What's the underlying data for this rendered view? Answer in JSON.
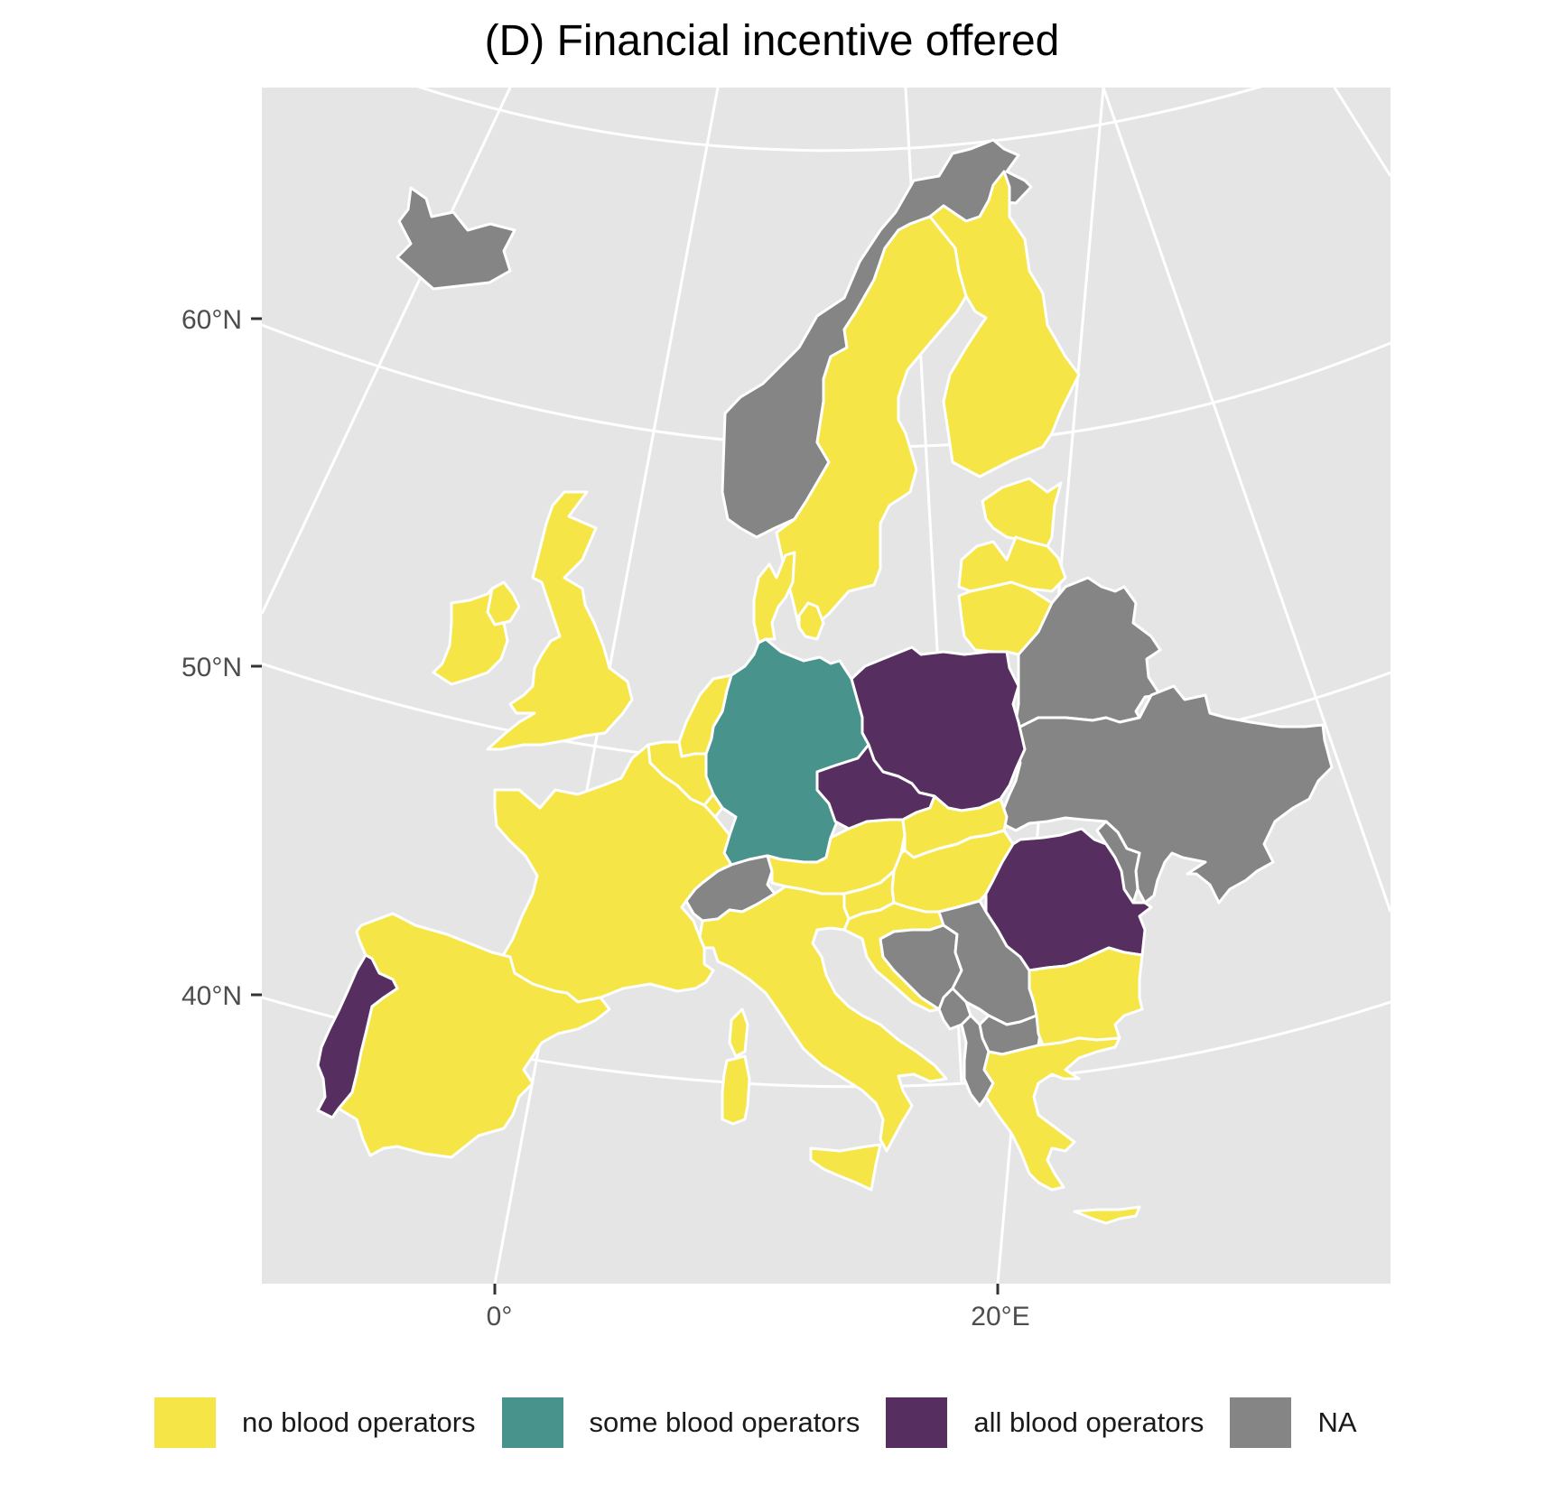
{
  "title": "(D) Financial incentive offered",
  "axes": {
    "y_ticks": [
      "60°N",
      "50°N",
      "40°N"
    ],
    "x_ticks": [
      "0°",
      "20°E"
    ]
  },
  "legend": {
    "items": [
      {
        "label": "no blood operators",
        "color": "#f6e547"
      },
      {
        "label": "some blood operators",
        "color": "#48948d"
      },
      {
        "label": "all blood operators",
        "color": "#572e60"
      },
      {
        "label": "NA",
        "color": "#858585"
      }
    ]
  },
  "map": {
    "panel_background": "#e5e5e5",
    "graticule_color": "#ffffff",
    "regions": [
      {
        "name": "Iceland",
        "category": "NA"
      },
      {
        "name": "Norway",
        "category": "NA"
      },
      {
        "name": "Sweden",
        "category": "no blood operators"
      },
      {
        "name": "Finland",
        "category": "no blood operators"
      },
      {
        "name": "Estonia",
        "category": "no blood operators"
      },
      {
        "name": "Latvia",
        "category": "no blood operators"
      },
      {
        "name": "Lithuania",
        "category": "no blood operators"
      },
      {
        "name": "Belarus",
        "category": "NA"
      },
      {
        "name": "Ukraine",
        "category": "NA"
      },
      {
        "name": "Moldova",
        "category": "NA"
      },
      {
        "name": "Poland",
        "category": "all blood operators"
      },
      {
        "name": "Germany",
        "category": "some blood operators"
      },
      {
        "name": "Czechia",
        "category": "all blood operators"
      },
      {
        "name": "Slovakia",
        "category": "no blood operators"
      },
      {
        "name": "Hungary",
        "category": "no blood operators"
      },
      {
        "name": "Austria",
        "category": "no blood operators"
      },
      {
        "name": "Slovenia",
        "category": "no blood operators"
      },
      {
        "name": "Croatia",
        "category": "no blood operators"
      },
      {
        "name": "Bosnia and Herzegovina",
        "category": "NA"
      },
      {
        "name": "Serbia",
        "category": "NA"
      },
      {
        "name": "Montenegro",
        "category": "NA"
      },
      {
        "name": "North Macedonia",
        "category": "NA"
      },
      {
        "name": "Albania",
        "category": "NA"
      },
      {
        "name": "Romania",
        "category": "all blood operators"
      },
      {
        "name": "Bulgaria",
        "category": "no blood operators"
      },
      {
        "name": "Greece",
        "category": "no blood operators"
      },
      {
        "name": "Italy",
        "category": "no blood operators"
      },
      {
        "name": "Switzerland",
        "category": "NA"
      },
      {
        "name": "France",
        "category": "no blood operators"
      },
      {
        "name": "Spain",
        "category": "no blood operators"
      },
      {
        "name": "Portugal",
        "category": "all blood operators"
      },
      {
        "name": "United Kingdom",
        "category": "no blood operators"
      },
      {
        "name": "Ireland",
        "category": "no blood operators"
      },
      {
        "name": "Netherlands",
        "category": "no blood operators"
      },
      {
        "name": "Belgium",
        "category": "no blood operators"
      },
      {
        "name": "Luxembourg",
        "category": "no blood operators"
      },
      {
        "name": "Denmark",
        "category": "no blood operators"
      },
      {
        "name": "Sardinia",
        "category": "no blood operators"
      },
      {
        "name": "Corsica",
        "category": "no blood operators"
      },
      {
        "name": "Sicily",
        "category": "no blood operators"
      },
      {
        "name": "Crete",
        "category": "no blood operators"
      }
    ]
  }
}
